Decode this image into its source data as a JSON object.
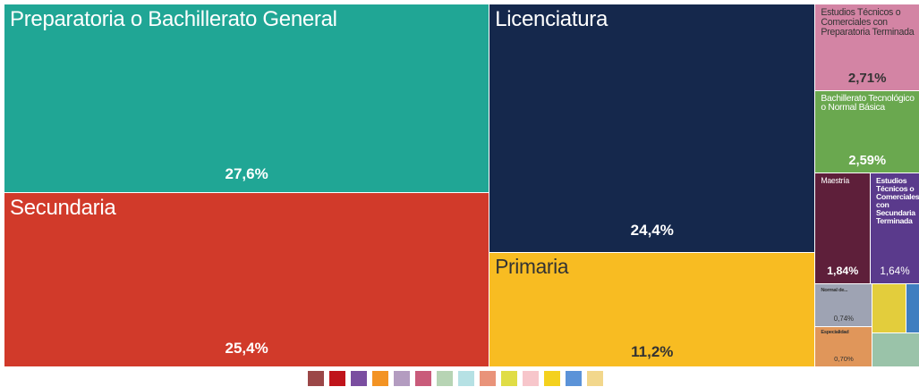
{
  "chart_data": {
    "type": "treemap",
    "categories": [
      "Preparatoria o Bachillerato General",
      "Secundaria",
      "Licenciatura",
      "Primaria",
      "Estudios Técnicos o Comerciales con Preparatoria Terminada",
      "Bachillerato Tecnológico o Normal Básica",
      "Maestría",
      "Estudios Técnicos o Comerciales con Secundaria Terminada",
      "Normal de...",
      "Especialidad",
      null,
      null,
      null
    ],
    "values": [
      27.6,
      25.4,
      24.4,
      11.2,
      2.71,
      2.59,
      1.84,
      1.64,
      0.74,
      0.7,
      0.5,
      0.2,
      0.48
    ],
    "value_labels": [
      "27,6%",
      "25,4%",
      "24,4%",
      "11,2%",
      "2,71%",
      "2,59%",
      "1,84%",
      "1,64%",
      "0,74%",
      "0,70%",
      null,
      null,
      null
    ],
    "colors": [
      "#20a695",
      "#d13a2a",
      "#15284c",
      "#f8bc22",
      "#d384a4",
      "#6aa84f",
      "#5e1f3a",
      "#5a3a8c",
      "#9ea3b3",
      "#e0965a",
      "#e3cd3c",
      "#3f7ec0",
      "#9ac3a9"
    ],
    "legend_colors": [
      "#9b4748",
      "#c0141b",
      "#7a4ea0",
      "#f39323",
      "#b39cc0",
      "#c95b7a",
      "#b7d4b4",
      "#b6e1e4",
      "#e9937a",
      "#e0dd46",
      "#f7c6cb",
      "#f4d11e",
      "#5b93d8",
      "#f2d78c"
    ]
  }
}
